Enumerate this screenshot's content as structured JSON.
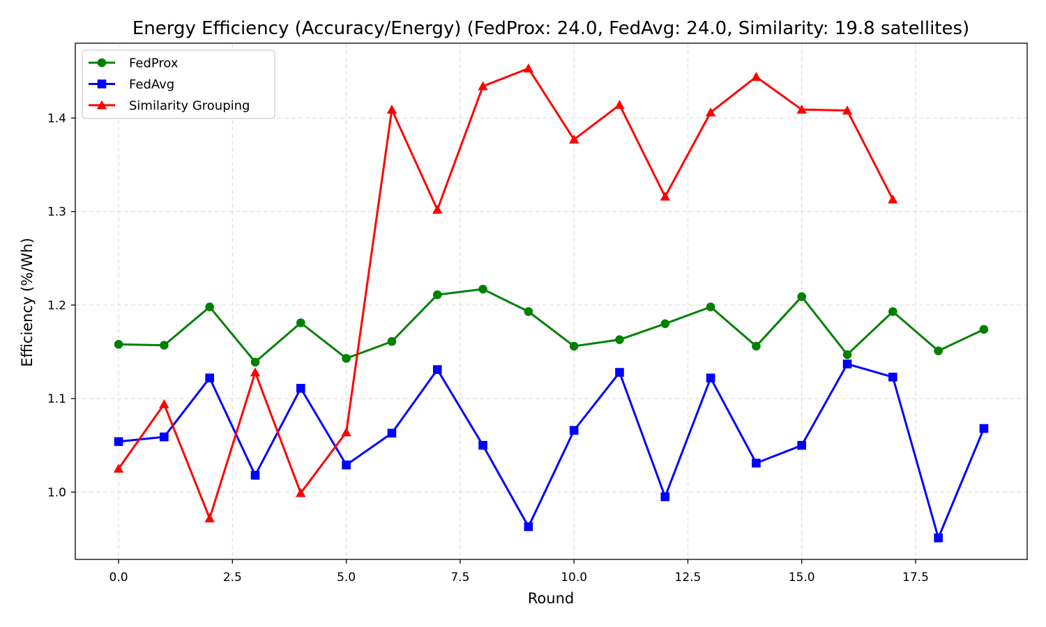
{
  "chart_data": {
    "type": "line",
    "title": "Energy Efficiency (Accuracy/Energy) (FedProx: 24.0, FedAvg: 24.0, Similarity: 19.8 satellites)",
    "xlabel": "Round",
    "ylabel": "Efficiency (%/Wh)",
    "xlim": [
      -0.95,
      19.95
    ],
    "ylim": [
      0.928,
      1.48
    ],
    "xticks": [
      0.0,
      2.5,
      5.0,
      7.5,
      10.0,
      12.5,
      15.0,
      17.5
    ],
    "xtick_labels": [
      "0.0",
      "2.5",
      "5.0",
      "7.5",
      "10.0",
      "12.5",
      "15.0",
      "17.5"
    ],
    "yticks": [
      1.0,
      1.1,
      1.2,
      1.3,
      1.4
    ],
    "ytick_labels": [
      "1.0",
      "1.1",
      "1.2",
      "1.3",
      "1.4"
    ],
    "grid": true,
    "legend_position": "top-left",
    "series": [
      {
        "name": "FedProx",
        "color": "#008000",
        "marker": "circle",
        "x": [
          0,
          1,
          2,
          3,
          4,
          5,
          6,
          7,
          8,
          9,
          10,
          11,
          12,
          13,
          14,
          15,
          16,
          17,
          18,
          19
        ],
        "y": [
          1.158,
          1.157,
          1.198,
          1.139,
          1.181,
          1.143,
          1.161,
          1.211,
          1.217,
          1.193,
          1.156,
          1.163,
          1.18,
          1.198,
          1.156,
          1.209,
          1.147,
          1.193,
          1.151,
          1.174
        ]
      },
      {
        "name": "FedAvg",
        "color": "#0000ff",
        "marker": "square",
        "x": [
          0,
          1,
          2,
          3,
          4,
          5,
          6,
          7,
          8,
          9,
          10,
          11,
          12,
          13,
          14,
          15,
          16,
          17,
          18,
          19
        ],
        "y": [
          1.054,
          1.059,
          1.122,
          1.018,
          1.111,
          1.029,
          1.063,
          1.131,
          1.05,
          0.963,
          1.066,
          1.128,
          0.995,
          1.122,
          1.031,
          1.05,
          1.137,
          1.123,
          0.951,
          1.068
        ]
      },
      {
        "name": "Similarity Grouping",
        "color": "#ff0000",
        "marker": "triangle",
        "x": [
          0,
          1,
          2,
          3,
          4,
          5,
          6,
          7,
          8,
          9,
          10,
          11,
          12,
          13,
          14,
          15,
          16,
          17
        ],
        "y": [
          1.025,
          1.094,
          0.972,
          1.128,
          0.999,
          1.064,
          1.409,
          1.302,
          1.434,
          1.453,
          1.377,
          1.414,
          1.316,
          1.406,
          1.444,
          1.409,
          1.408,
          1.313
        ]
      }
    ]
  }
}
